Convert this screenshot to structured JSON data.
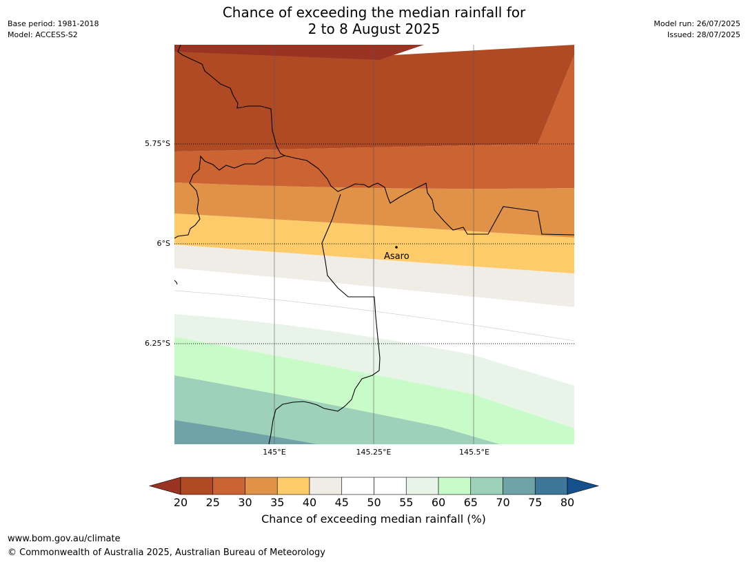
{
  "title_line1": "Chance of exceeding the median rainfall for",
  "title_line2": "2 to 8 August 2025",
  "meta_left": {
    "base_period": "Base period: 1981-2018",
    "model": "Model: ACCESS-S2"
  },
  "meta_right": {
    "model_run": "Model run: 26/07/2025",
    "issued": "Issued: 28/07/2025"
  },
  "map": {
    "lat_labels": [
      "5.75°S",
      "6°S",
      "6.25°S"
    ],
    "lon_labels": [
      "145°E",
      "145.25°E",
      "145.5°E"
    ],
    "place": {
      "name": "Asaro"
    }
  },
  "colorbar": {
    "ticks": [
      "20",
      "25",
      "30",
      "35",
      "40",
      "45",
      "50",
      "55",
      "60",
      "65",
      "70",
      "75",
      "80"
    ],
    "label": "Chance of exceeding median rainfall (%)",
    "colors": {
      "under": "#9a3422",
      "20-25": "#b04a25",
      "25-30": "#cb6332",
      "30-35": "#e09248",
      "35-40": "#fecb6a",
      "40-45": "#f0ece6",
      "45-50": "#ffffff",
      "50-55": "#ffffff",
      "55-60": "#e8f4e8",
      "60-65": "#c9fbc9",
      "65-70": "#9ed1b9",
      "70-75": "#6fa3a7",
      "75-80": "#3f7799",
      "over": "#154f8c"
    }
  },
  "footer": {
    "url": "www.bom.gov.au/climate",
    "copyright": "© Commonwealth of Australia 2025, Australian Bureau of Meteorology"
  }
}
